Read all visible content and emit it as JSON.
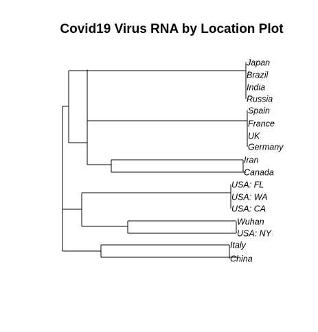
{
  "title": "Covid19 Virus RNA by Location Plot",
  "tree": {
    "children": [
      {
        "children": [
          {
            "children": [
              {
                "leaves": [
                  "Japan",
                  "Brazil",
                  "India",
                  "Russia"
                ]
              },
              {
                "leaves": [
                  "Spain",
                  "France",
                  "UK",
                  "Germany"
                ]
              }
            ]
          },
          {
            "leaves": [
              "Iran",
              "Canada"
            ]
          }
        ]
      },
      {
        "children": [
          {
            "children": [
              {
                "leaves": [
                  "USA: FL",
                  "USA: WA",
                  "USA: CA"
                ]
              },
              {
                "leaves": [
                  "Wuhan",
                  "USA: NY"
                ]
              }
            ]
          },
          {
            "leaves": [
              "Italy",
              "China"
            ]
          }
        ]
      }
    ]
  }
}
